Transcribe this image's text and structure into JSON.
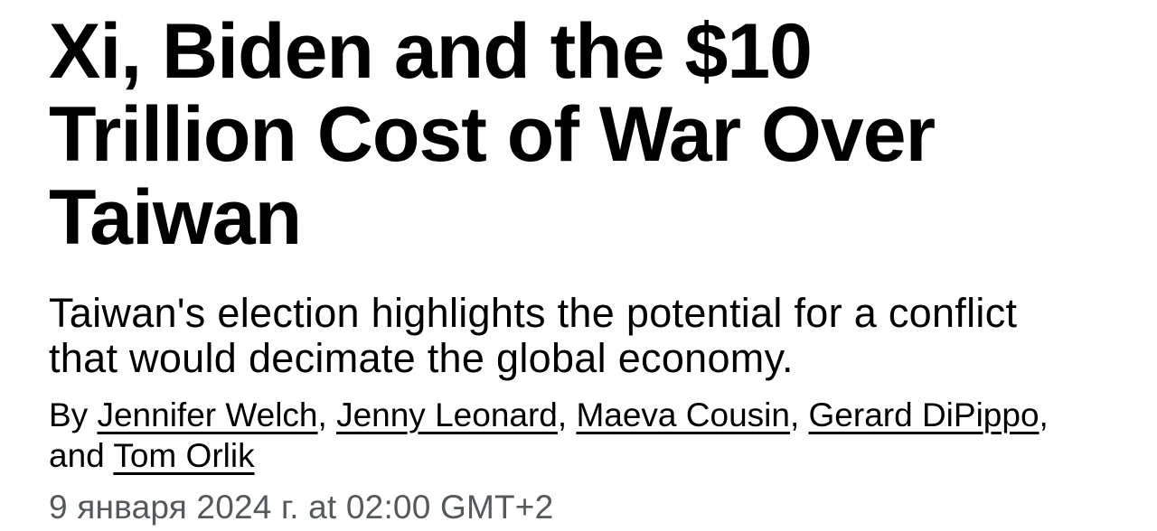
{
  "article": {
    "headline": "Xi, Biden and the $10 Trillion Cost of War Over Taiwan",
    "subtitle": "Taiwan's election highlights the potential for a conflict that would decimate the global economy.",
    "byline": {
      "segments": [
        {
          "text": "By ",
          "link": false
        },
        {
          "text": "Jennifer Welch",
          "link": true
        },
        {
          "text": ", ",
          "link": false
        },
        {
          "text": "Jenny Leonard",
          "link": true
        },
        {
          "text": ", ",
          "link": false
        },
        {
          "text": "Maeva Cousin",
          "link": true
        },
        {
          "text": ", ",
          "link": false
        },
        {
          "text": "Gerard DiPippo",
          "link": true
        },
        {
          "text": ", and ",
          "link": false
        },
        {
          "text": "Tom Orlik",
          "link": true
        }
      ]
    },
    "timestamp": "9 января 2024 г. at 02:00 GMT+2"
  },
  "colors": {
    "background": "#ffffff",
    "text": "#000000",
    "timestamp": "#55595c"
  }
}
